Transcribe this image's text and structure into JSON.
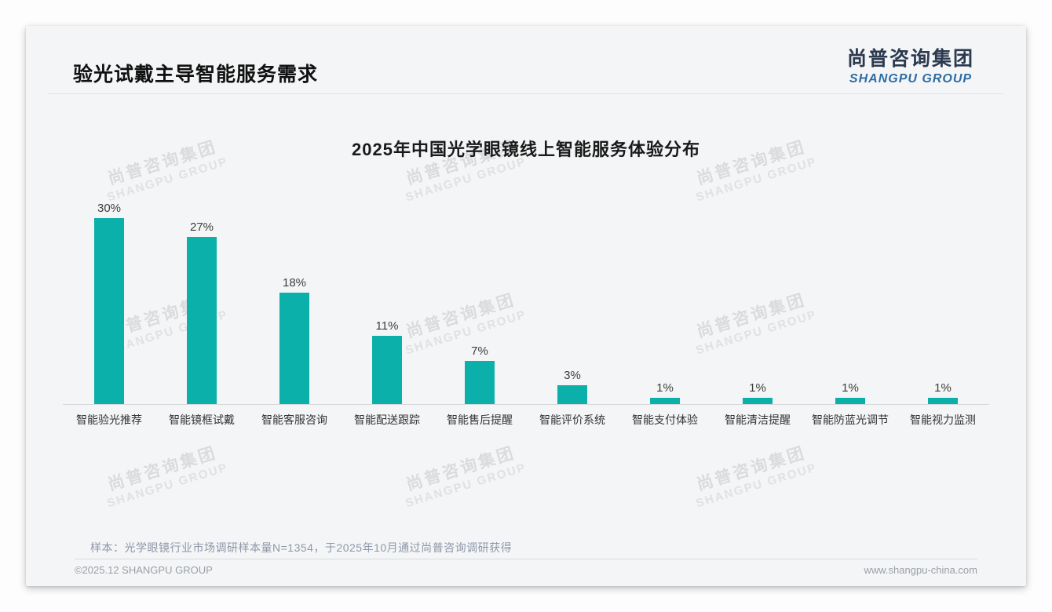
{
  "header": {
    "title": "验光试戴主导智能服务需求",
    "logo_cn": "尚普咨询集团",
    "logo_en": "SHANGPU GROUP"
  },
  "watermark": {
    "cn": "尚普咨询集团",
    "en": "SHANGPU GROUP"
  },
  "chart_data": {
    "type": "bar",
    "title": "2025年中国光学眼镜线上智能服务体验分布",
    "categories": [
      "智能验光推荐",
      "智能镜框试戴",
      "智能客服咨询",
      "智能配送跟踪",
      "智能售后提醒",
      "智能评价系统",
      "智能支付体验",
      "智能清洁提醒",
      "智能防蓝光调节",
      "智能视力监测"
    ],
    "values": [
      30,
      27,
      18,
      11,
      7,
      3,
      1,
      1,
      1,
      1
    ],
    "data_labels": [
      "30%",
      "27%",
      "18%",
      "11%",
      "7%",
      "3%",
      "1%",
      "1%",
      "1%",
      "1%"
    ],
    "unit": "%",
    "xlabel": "",
    "ylabel": "",
    "ylim": [
      0,
      32
    ],
    "grid": false,
    "legend": "none",
    "bar_color": "#0bb0aa",
    "axis_line_color": "#d5d7d9"
  },
  "footnote": "样本：光学眼镜行业市场调研样本量N=1354，于2025年10月通过尚普咨询调研获得",
  "footer": {
    "left": "©2025.12 SHANGPU GROUP",
    "right": "www.shangpu-china.com"
  },
  "colors": {
    "bar": "#0bb0aa",
    "logo_navy": "#2c3a50",
    "logo_blue": "#2d6da3",
    "card_bg": "#f4f5f6"
  }
}
